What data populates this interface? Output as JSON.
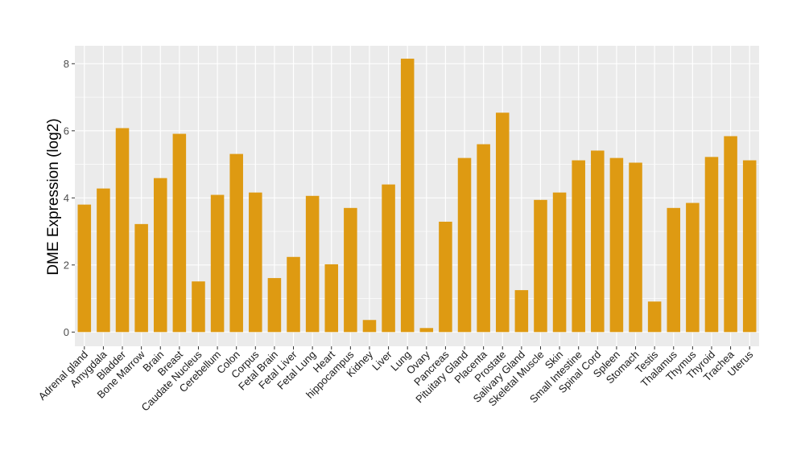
{
  "chart_data": {
    "type": "bar",
    "title": "",
    "xlabel": "",
    "ylabel": "DME Expression (log2)",
    "ylim": [
      -0.4,
      8.5
    ],
    "yticks": [
      0,
      2,
      4,
      6,
      8
    ],
    "grid": true,
    "bar_color": "#DE9A12",
    "panel_color": "#EBEBEB",
    "categories": [
      "Adrenal gland",
      "Amygdala",
      "Bladder",
      "Bone Marrow",
      "Brain",
      "Breast",
      "Caudate Nucleus",
      "Cerebellum",
      "Colon",
      "Corpus",
      "Fetal Brain",
      "Fetal Liver",
      "Fetal Lung",
      "Heart",
      "hippocampus",
      "Kidney",
      "Liver",
      "Lung",
      "Ovary",
      "Pancreas",
      "Pituitary Gland",
      "Placenta",
      "Prostate",
      "Salivary Gland",
      "Skeletal Muscle",
      "Skin",
      "Small Intestine",
      "Spinal Cord",
      "Spleen",
      "Stomach",
      "Testis",
      "Thalamus",
      "Thymus",
      "Thyroid",
      "Trachea",
      "Uterus"
    ],
    "values": [
      3.8,
      4.28,
      6.08,
      3.22,
      4.59,
      5.91,
      1.51,
      4.09,
      5.31,
      4.16,
      1.61,
      2.24,
      4.06,
      2.02,
      3.7,
      0.36,
      4.4,
      8.15,
      0.12,
      3.29,
      5.19,
      5.6,
      6.54,
      1.25,
      3.94,
      4.16,
      5.12,
      5.41,
      5.19,
      5.05,
      0.91,
      3.7,
      3.85,
      5.22,
      5.84,
      5.12
    ]
  }
}
